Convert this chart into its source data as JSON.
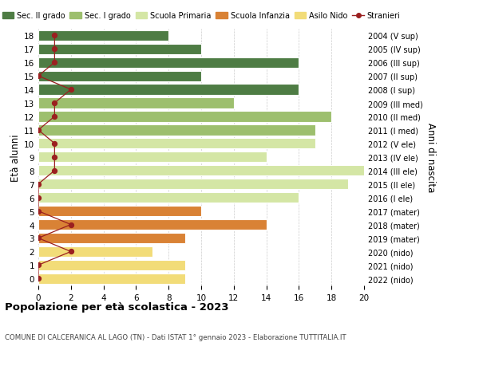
{
  "ages": [
    0,
    1,
    2,
    3,
    4,
    5,
    6,
    7,
    8,
    9,
    10,
    11,
    12,
    13,
    14,
    15,
    16,
    17,
    18
  ],
  "years": [
    "2022 (nido)",
    "2021 (nido)",
    "2020 (nido)",
    "2019 (mater)",
    "2018 (mater)",
    "2017 (mater)",
    "2016 (I ele)",
    "2015 (II ele)",
    "2014 (III ele)",
    "2013 (IV ele)",
    "2012 (V ele)",
    "2011 (I med)",
    "2010 (II med)",
    "2009 (III med)",
    "2008 (I sup)",
    "2007 (II sup)",
    "2006 (III sup)",
    "2005 (IV sup)",
    "2004 (V sup)"
  ],
  "bar_values": [
    9,
    9,
    7,
    9,
    14,
    10,
    16,
    19,
    20,
    14,
    17,
    17,
    18,
    12,
    16,
    10,
    16,
    10,
    8
  ],
  "bar_colors": [
    "#f2dc78",
    "#f2dc78",
    "#f2dc78",
    "#d98235",
    "#d98235",
    "#d98235",
    "#d4e6a5",
    "#d4e6a5",
    "#d4e6a5",
    "#d4e6a5",
    "#d4e6a5",
    "#9dbf6e",
    "#9dbf6e",
    "#9dbf6e",
    "#4e7c44",
    "#4e7c44",
    "#4e7c44",
    "#4e7c44",
    "#4e7c44"
  ],
  "stranieri_values": [
    0,
    0,
    2,
    0,
    2,
    0,
    0,
    0,
    1,
    1,
    1,
    0,
    1,
    1,
    2,
    0,
    1,
    1,
    1
  ],
  "stranieri_color": "#9b2020",
  "legend_labels": [
    "Sec. II grado",
    "Sec. I grado",
    "Scuola Primaria",
    "Scuola Infanzia",
    "Asilo Nido",
    "Stranieri"
  ],
  "legend_colors": [
    "#4e7c44",
    "#9dbf6e",
    "#d4e6a5",
    "#d98235",
    "#f2dc78",
    "#9b2020"
  ],
  "ylabel_left": "Età alunni",
  "ylabel_right": "Anni di nascita",
  "title": "Popolazione per età scolastica - 2023",
  "subtitle": "COMUNE DI CALCERANICA AL LAGO (TN) - Dati ISTAT 1° gennaio 2023 - Elaborazione TUTTITALIA.IT",
  "xlim": [
    0,
    20
  ],
  "xticks": [
    0,
    2,
    4,
    6,
    8,
    10,
    12,
    14,
    16,
    18,
    20
  ],
  "bar_height": 0.78,
  "background_color": "#ffffff",
  "grid_color": "#cccccc"
}
